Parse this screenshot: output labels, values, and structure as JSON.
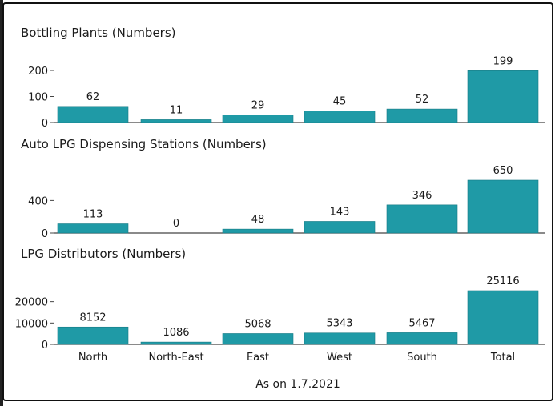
{
  "chart_data": [
    {
      "type": "bar",
      "title": "Bottling Plants (Numbers)",
      "categories": [
        "North",
        "North-East",
        "East",
        "West",
        "South",
        "Total"
      ],
      "values": [
        62,
        11,
        29,
        45,
        52,
        199
      ],
      "yticks": [
        0,
        100,
        200
      ],
      "ylim": [
        0,
        200
      ],
      "grid": false,
      "bar_color": "#1f9aa6"
    },
    {
      "type": "bar",
      "title": "Auto LPG Dispensing Stations (Numbers)",
      "categories": [
        "North",
        "North-East",
        "East",
        "West",
        "South",
        "Total"
      ],
      "values": [
        113,
        0,
        48,
        143,
        346,
        650
      ],
      "yticks": [
        0,
        400
      ],
      "ylim": [
        0,
        650
      ],
      "grid": false,
      "bar_color": "#1f9aa6"
    },
    {
      "type": "bar",
      "title": "LPG Distributors (Numbers)",
      "categories": [
        "North",
        "North-East",
        "East",
        "West",
        "South",
        "Total"
      ],
      "values": [
        8152,
        1086,
        5068,
        5343,
        5467,
        25116
      ],
      "yticks": [
        0,
        10000,
        20000
      ],
      "ylim": [
        0,
        25116
      ],
      "grid": false,
      "bar_color": "#1f9aa6"
    }
  ],
  "x_categories": [
    "North",
    "North-East",
    "East",
    "West",
    "South",
    "Total"
  ],
  "footer": "As on 1.7.2021"
}
